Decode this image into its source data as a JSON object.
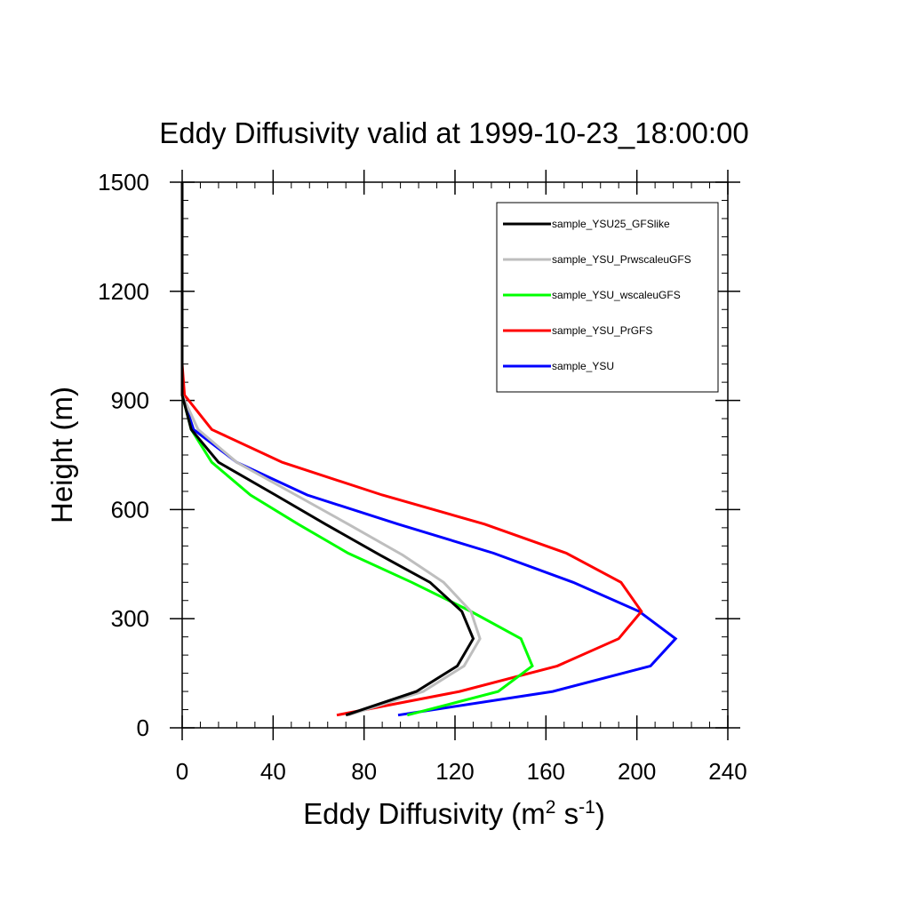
{
  "chart_data": {
    "type": "line",
    "title": "Eddy Diffusivity valid at 1999-10-23_18:00:00",
    "xlabel": "Eddy Diffusivity (m",
    "xlabel_sup1": "2",
    "xlabel_mid": " s",
    "xlabel_sup2": "-1",
    "xlabel_end": ")",
    "ylabel": "Height (m)",
    "xlim": [
      0,
      240
    ],
    "ylim": [
      0,
      1500
    ],
    "x_ticks": [
      0,
      40,
      80,
      120,
      160,
      200,
      240
    ],
    "y_ticks": [
      0,
      300,
      600,
      900,
      1200,
      1500
    ],
    "grid": false,
    "legend_position": "top-right",
    "series": [
      {
        "name": "sample_YSU25_GFSlike",
        "color": "#000000",
        "points": [
          [
            72,
            35
          ],
          [
            103,
            100
          ],
          [
            121,
            170
          ],
          [
            128,
            245
          ],
          [
            123,
            320
          ],
          [
            109,
            400
          ],
          [
            87,
            475
          ],
          [
            63,
            560
          ],
          [
            41,
            640
          ],
          [
            16,
            730
          ],
          [
            4,
            820
          ],
          [
            0,
            915
          ],
          [
            0,
            1000
          ],
          [
            0,
            1100
          ],
          [
            0,
            1200
          ],
          [
            0,
            1300
          ],
          [
            0,
            1400
          ],
          [
            0,
            1500
          ]
        ]
      },
      {
        "name": "sample_YSU_PrwscaleuGFS",
        "color": "#bebebe",
        "points": [
          [
            73,
            35
          ],
          [
            106,
            100
          ],
          [
            124,
            170
          ],
          [
            131,
            245
          ],
          [
            127,
            320
          ],
          [
            115,
            400
          ],
          [
            97,
            475
          ],
          [
            73,
            560
          ],
          [
            50,
            640
          ],
          [
            24,
            730
          ],
          [
            7,
            820
          ],
          [
            0,
            915
          ],
          [
            0,
            1000
          ],
          [
            0,
            1100
          ],
          [
            0,
            1200
          ],
          [
            0,
            1300
          ],
          [
            0,
            1400
          ],
          [
            0,
            1500
          ]
        ]
      },
      {
        "name": "sample_YSU_wscaleuGFS",
        "color": "#00ff00",
        "points": [
          [
            99,
            35
          ],
          [
            139,
            100
          ],
          [
            154,
            170
          ],
          [
            149,
            245
          ],
          [
            127,
            320
          ],
          [
            101,
            400
          ],
          [
            73,
            480
          ],
          [
            51,
            560
          ],
          [
            30,
            640
          ],
          [
            13,
            730
          ],
          [
            4,
            820
          ],
          [
            0,
            915
          ],
          [
            0,
            1000
          ],
          [
            0,
            1100
          ],
          [
            0,
            1200
          ],
          [
            0,
            1300
          ],
          [
            0,
            1400
          ],
          [
            0,
            1500
          ]
        ]
      },
      {
        "name": "sample_YSU_PrGFS",
        "color": "#ff0000",
        "points": [
          [
            68,
            35
          ],
          [
            122,
            100
          ],
          [
            165,
            170
          ],
          [
            192,
            245
          ],
          [
            202,
            320
          ],
          [
            193,
            400
          ],
          [
            169,
            480
          ],
          [
            133,
            560
          ],
          [
            88,
            640
          ],
          [
            44,
            730
          ],
          [
            13,
            820
          ],
          [
            1,
            915
          ],
          [
            0,
            1000
          ],
          [
            0,
            1100
          ],
          [
            0,
            1200
          ],
          [
            0,
            1300
          ],
          [
            0,
            1400
          ],
          [
            0,
            1500
          ]
        ]
      },
      {
        "name": "sample_YSU",
        "color": "#0000ff",
        "points": [
          [
            95,
            35
          ],
          [
            163,
            100
          ],
          [
            206,
            170
          ],
          [
            217,
            245
          ],
          [
            201,
            320
          ],
          [
            172,
            400
          ],
          [
            137,
            480
          ],
          [
            95,
            560
          ],
          [
            55,
            640
          ],
          [
            24,
            730
          ],
          [
            5,
            820
          ],
          [
            0,
            915
          ],
          [
            0,
            1000
          ],
          [
            0,
            1100
          ],
          [
            0,
            1200
          ],
          [
            0,
            1300
          ],
          [
            0,
            1400
          ],
          [
            0,
            1500
          ]
        ]
      }
    ]
  }
}
